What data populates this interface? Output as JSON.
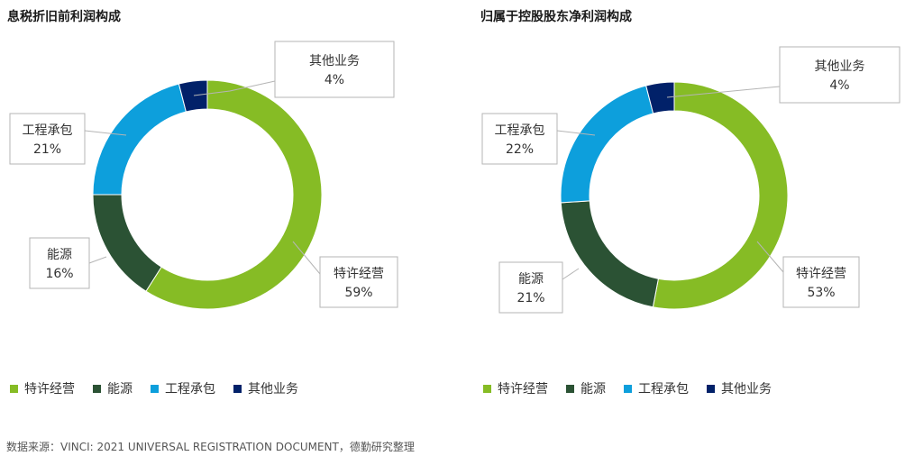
{
  "colors": {
    "green": "#86bc25",
    "dark_green": "#2b5234",
    "blue": "#0d9fdc",
    "navy": "#012169"
  },
  "chart_data": [
    {
      "type": "pie",
      "style": "donut",
      "title": "息税折旧前利润构成",
      "categories": [
        "特许经营",
        "能源",
        "工程承包",
        "其他业务"
      ],
      "values": [
        59,
        16,
        21,
        4
      ],
      "value_labels": [
        "59%",
        "16%",
        "21%",
        "4%"
      ],
      "legend_position": "bottom"
    },
    {
      "type": "pie",
      "style": "donut",
      "title": "归属于控股股东净利润构成",
      "categories": [
        "特许经营",
        "能源",
        "工程承包",
        "其他业务"
      ],
      "values": [
        53,
        21,
        22,
        4
      ],
      "value_labels": [
        "53%",
        "21%",
        "22%",
        "4%"
      ],
      "legend_position": "bottom"
    }
  ],
  "source_note": "数据来源：VINCI: 2021 UNIVERSAL REGISTRATION DOCUMENT，德勤研究整理"
}
